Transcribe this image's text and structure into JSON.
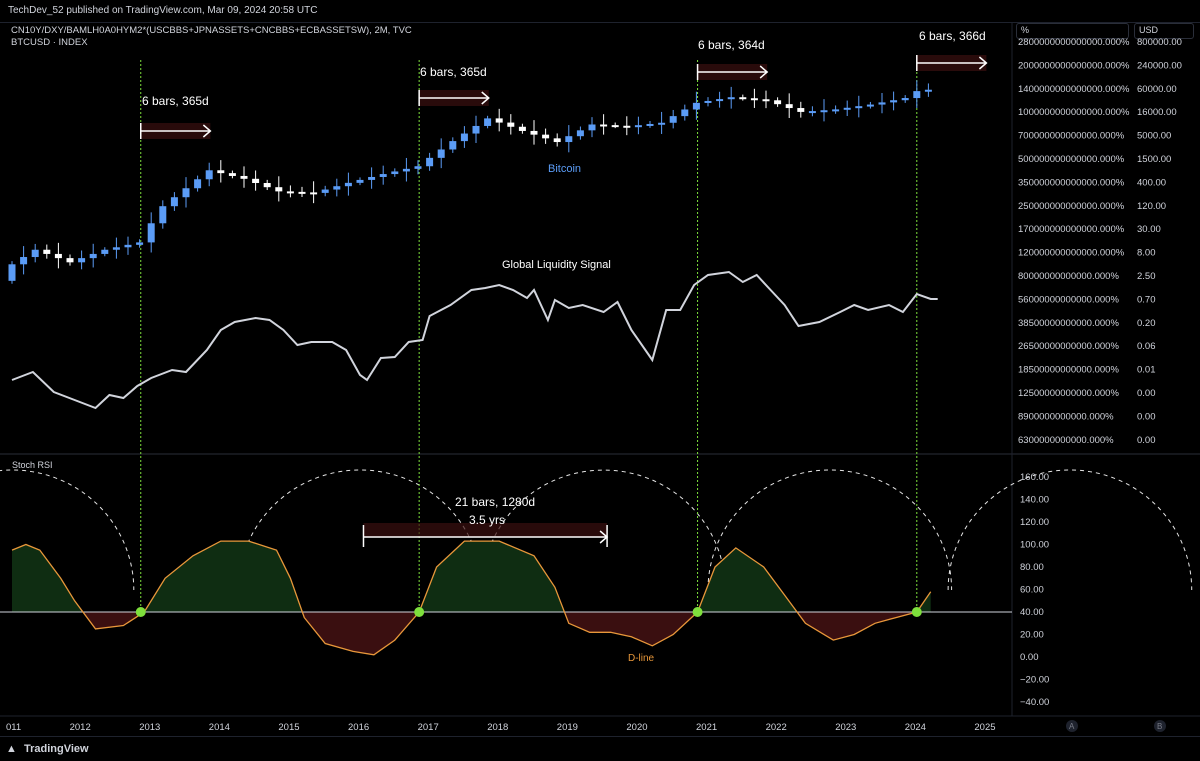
{
  "header": {
    "published": "TechDev_52 published on TradingView.com, Mar 09, 2024 20:58 UTC",
    "symbol_line1": "CN10Y/DXY/BAMLH0A0HYM2*(USCBBS+JPNASSETS+CNCBBS+ECBASSETSW), 2M, TVC",
    "symbol_line2": "BTCUSD · INDEX",
    "scale_left": "%",
    "scale_right": "USD"
  },
  "footer": {
    "brand": "TradingView",
    "logo_icon": "tradingview-logo-icon",
    "badge_a": "A",
    "badge_b": "B"
  },
  "chart_data": [
    {
      "type": "candlestick",
      "series_label": "Bitcoin",
      "color": "#5b9cf6",
      "y_axis_right_ticks": [
        "800000.00",
        "240000.00",
        "60000.00",
        "16000.00",
        "5000.00",
        "1500.00",
        "400.00",
        "120.00",
        "30.00",
        "8.00",
        "2.50",
        "0.70",
        "0.20",
        "0.06",
        "0.01",
        "0.00",
        "0.00",
        "0.00"
      ],
      "approx_close_usd": [
        {
          "x": 2011.0,
          "y": 3
        },
        {
          "x": 2011.5,
          "y": 10
        },
        {
          "x": 2012.0,
          "y": 5
        },
        {
          "x": 2012.5,
          "y": 10
        },
        {
          "x": 2013.0,
          "y": 15
        },
        {
          "x": 2013.3,
          "y": 100
        },
        {
          "x": 2014.0,
          "y": 800
        },
        {
          "x": 2014.5,
          "y": 500
        },
        {
          "x": 2015.0,
          "y": 250
        },
        {
          "x": 2015.5,
          "y": 230
        },
        {
          "x": 2016.0,
          "y": 400
        },
        {
          "x": 2016.5,
          "y": 650
        },
        {
          "x": 2017.0,
          "y": 1000
        },
        {
          "x": 2017.5,
          "y": 4000
        },
        {
          "x": 2018.0,
          "y": 14000
        },
        {
          "x": 2018.5,
          "y": 7000
        },
        {
          "x": 2019.0,
          "y": 3800
        },
        {
          "x": 2019.5,
          "y": 10000
        },
        {
          "x": 2020.0,
          "y": 9000
        },
        {
          "x": 2020.5,
          "y": 11000
        },
        {
          "x": 2021.0,
          "y": 33000
        },
        {
          "x": 2021.5,
          "y": 45000
        },
        {
          "x": 2022.0,
          "y": 38000
        },
        {
          "x": 2022.5,
          "y": 20000
        },
        {
          "x": 2023.0,
          "y": 23000
        },
        {
          "x": 2023.5,
          "y": 30000
        },
        {
          "x": 2024.0,
          "y": 43000
        },
        {
          "x": 2024.2,
          "y": 68000
        }
      ]
    },
    {
      "type": "line",
      "series_label": "Global Liquidity Signal",
      "color": "#d1d4dc",
      "y_axis_ticks_percent": [
        "2800000000000000.000%",
        "2000000000000000.000%",
        "1400000000000000.000%",
        "1000000000000000.000%",
        "700000000000000.000%",
        "500000000000000.000%",
        "350000000000000.000%",
        "250000000000000.000%",
        "170000000000000.000%",
        "120000000000000.000%",
        "80000000000000.000%",
        "56000000000000.000%",
        "38500000000000.000%",
        "26500000000000.000%",
        "18500000000000.000%",
        "12500000000000.000%",
        "8900000000000.000%",
        "6300000000000.000%"
      ]
    },
    {
      "type": "area",
      "title": "Stoch RSI",
      "series_label": "D-line",
      "line_color": "#e8973a",
      "fill_above": "#0f2d12",
      "fill_below": "#3a0f10",
      "baseline": 40,
      "ylim": [
        -50,
        170
      ],
      "y_ticks": [
        "160.00",
        "140.00",
        "120.00",
        "100.00",
        "80.00",
        "60.00",
        "40.00",
        "20.00",
        "0.00",
        "−20.00",
        "−40.00"
      ],
      "signal_color": "#7ee03c",
      "cross_points_years": [
        2012.85,
        2016.85,
        2020.85,
        2024.0
      ]
    }
  ],
  "x_axis": {
    "ticks": [
      "011",
      "2012",
      "2013",
      "2014",
      "2015",
      "2016",
      "2017",
      "2018",
      "2019",
      "2020",
      "2021",
      "2022",
      "2023",
      "2024",
      "2025"
    ]
  },
  "annotations": {
    "cycle1": "6 bars, 365d",
    "cycle2": "6 bars, 365d",
    "cycle3": "6 bars, 364d",
    "cycle4": "6 bars, 366d",
    "range_main": "21 bars, 1280d",
    "range_sub": "3.5 yrs"
  }
}
